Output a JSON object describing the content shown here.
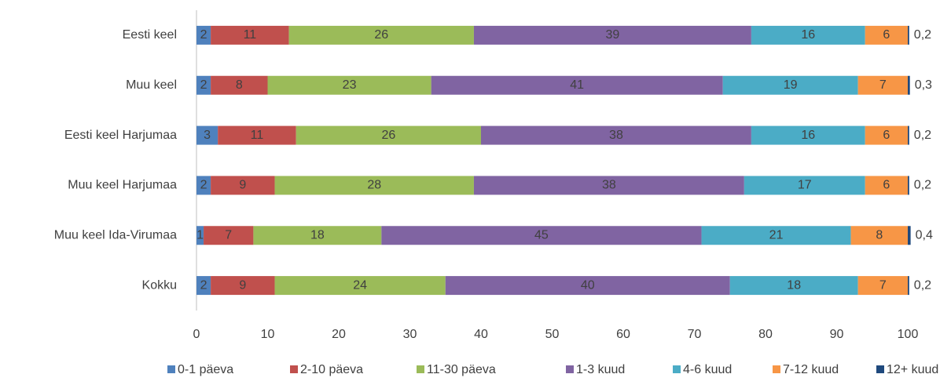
{
  "chart_data": {
    "type": "stacked-bar-horizontal",
    "categories": [
      "Eesti keel",
      "Muu keel",
      "Eesti keel Harjumaa",
      "Muu keel Harjumaa",
      "Muu keel Ida-Virumaa",
      "Kokku"
    ],
    "series": [
      {
        "name": "0-1 päeva",
        "color": "#4f81bd",
        "values": [
          2,
          2,
          3,
          2,
          1,
          2
        ]
      },
      {
        "name": "2-10 päeva",
        "color": "#c0504d",
        "values": [
          11,
          8,
          11,
          9,
          7,
          9
        ]
      },
      {
        "name": "11-30 päeva",
        "color": "#9bbb59",
        "values": [
          26,
          23,
          26,
          28,
          18,
          24
        ]
      },
      {
        "name": "1-3 kuud",
        "color": "#8064a2",
        "values": [
          39,
          41,
          38,
          38,
          45,
          40
        ]
      },
      {
        "name": "4-6 kuud",
        "color": "#4bacc6",
        "values": [
          16,
          19,
          16,
          17,
          21,
          18
        ]
      },
      {
        "name": "7-12 kuud",
        "color": "#f79646",
        "values": [
          6,
          7,
          6,
          6,
          8,
          7
        ]
      },
      {
        "name": "12+ kuud",
        "color": "#1f497d",
        "values": [
          0.2,
          0.3,
          0.2,
          0.2,
          0.4,
          0.2
        ],
        "value_labels": [
          "0,2",
          "0,3",
          "0,2",
          "0,2",
          "0,4",
          "0,2"
        ]
      }
    ],
    "xlim": [
      0,
      100
    ],
    "xticks": [
      0,
      10,
      20,
      30,
      40,
      50,
      60,
      70,
      80,
      90,
      100
    ],
    "grid": false,
    "legend": "bottom"
  }
}
